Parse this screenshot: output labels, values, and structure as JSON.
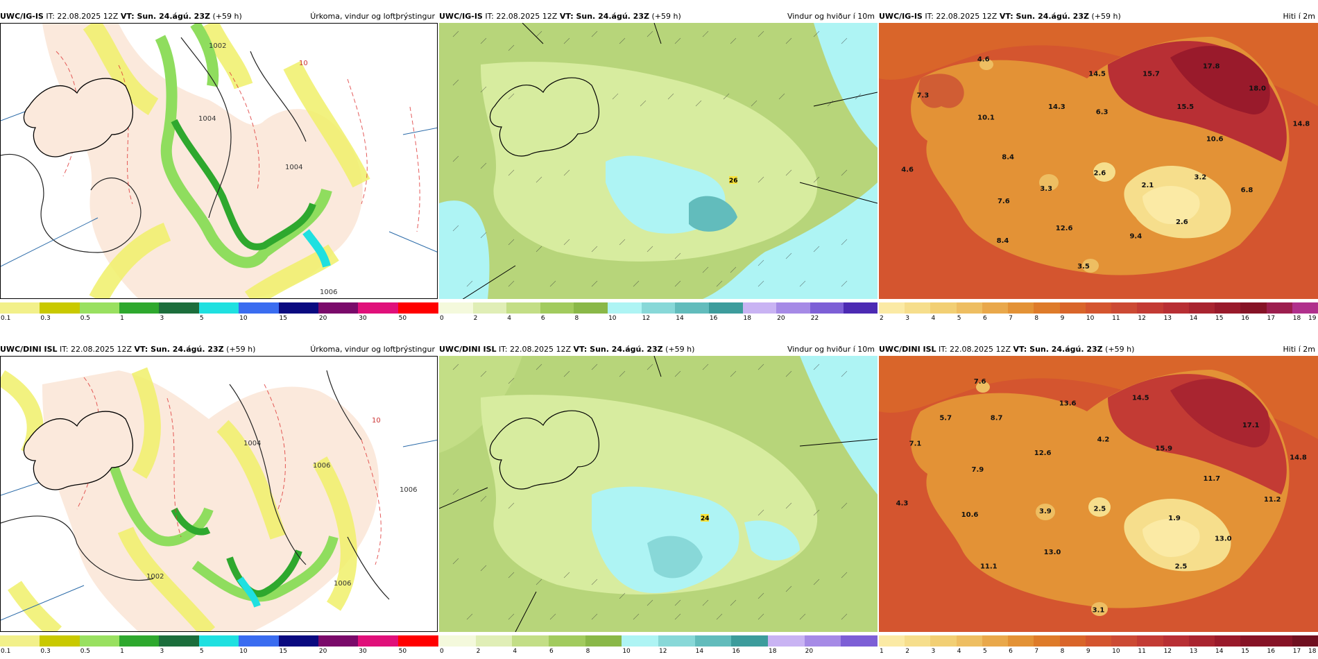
{
  "rows": [
    {
      "model": "UWC/IG-IS",
      "it_label": "IT: 22.08.2025 12Z",
      "vt_label": "VT: Sun. 24.ágú. 23Z",
      "lead": "(+59 h)",
      "panels": {
        "precip": {
          "title": "Úrkoma, vindur og loftþrýstingur",
          "isobars": [
            "1004",
            "1002",
            "1004",
            "1006",
            "10"
          ],
          "colorbar": {
            "colors": [
              "#f2f08a",
              "#c9c900",
              "#99e060",
              "#2ea82e",
              "#1c6e3c",
              "#1fe0e0",
              "#3a6cf0",
              "#0a0a80",
              "#7a0a6a",
              "#e0107a",
              "#ff0000"
            ],
            "ticks": [
              "0.1",
              "0.3",
              "0.5",
              "1",
              "3",
              "5",
              "10",
              "15",
              "20",
              "30",
              "50"
            ]
          }
        },
        "wind": {
          "title": "Vindur og hviður í 10m",
          "max_label": "26",
          "colorbar": {
            "colors": [
              "#f4f9dc",
              "#e0eeb6",
              "#c3de86",
              "#a2cb5e",
              "#8ab848",
              "#aef4f4",
              "#88d8d8",
              "#62bcbc",
              "#3d9c9c",
              "#c9b3f3",
              "#a68ae6",
              "#7d5fd6",
              "#4c2ab3"
            ],
            "ticks": [
              "0",
              "2",
              "4",
              "6",
              "8",
              "10",
              "12",
              "14",
              "16",
              "18",
              "20",
              "22"
            ]
          }
        },
        "temp": {
          "title": "Hiti í 2m",
          "labels": [
            {
              "v": "4.6",
              "u": 0.238,
              "w": 0.13
            },
            {
              "v": "7.3",
              "u": 0.1,
              "w": 0.26
            },
            {
              "v": "10.1",
              "u": 0.244,
              "w": 0.34
            },
            {
              "v": "14.5",
              "u": 0.497,
              "w": 0.182
            },
            {
              "v": "15.7",
              "u": 0.62,
              "w": 0.182
            },
            {
              "v": "17.8",
              "u": 0.757,
              "w": 0.155
            },
            {
              "v": "18.0",
              "u": 0.862,
              "w": 0.235
            },
            {
              "v": "14.3",
              "u": 0.405,
              "w": 0.302
            },
            {
              "v": "6.3",
              "u": 0.508,
              "w": 0.32
            },
            {
              "v": "15.5",
              "u": 0.698,
              "w": 0.302
            },
            {
              "v": "14.8",
              "u": 0.962,
              "w": 0.363
            },
            {
              "v": "10.6",
              "u": 0.765,
              "w": 0.418
            },
            {
              "v": "8.4",
              "u": 0.294,
              "w": 0.484
            },
            {
              "v": "4.6",
              "u": 0.065,
              "w": 0.529
            },
            {
              "v": "2.6",
              "u": 0.503,
              "w": 0.541
            },
            {
              "v": "2.1",
              "u": 0.612,
              "w": 0.585
            },
            {
              "v": "3.2",
              "u": 0.732,
              "w": 0.557
            },
            {
              "v": "3.3",
              "u": 0.381,
              "w": 0.598
            },
            {
              "v": "6.8",
              "u": 0.838,
              "w": 0.603
            },
            {
              "v": "7.6",
              "u": 0.284,
              "w": 0.643
            },
            {
              "v": "2.6",
              "u": 0.69,
              "w": 0.718
            },
            {
              "v": "12.6",
              "u": 0.422,
              "w": 0.741
            },
            {
              "v": "9.4",
              "u": 0.585,
              "w": 0.77
            },
            {
              "v": "8.4",
              "u": 0.282,
              "w": 0.786
            },
            {
              "v": "3.5",
              "u": 0.466,
              "w": 0.88
            }
          ],
          "colorbar": {
            "colors": [
              "#fbeaa5",
              "#f6de8c",
              "#f2cf74",
              "#eebe62",
              "#e9a84b",
              "#e39236",
              "#de7b2a",
              "#d9652a",
              "#d4552f",
              "#cc4a34",
              "#c33b34",
              "#b82f34",
              "#a92530",
              "#991a2b",
              "#861326",
              "#9c1e4e",
              "#b0308c"
            ],
            "ticks": [
              "2",
              "3",
              "4",
              "5",
              "6",
              "7",
              "8",
              "9",
              "10",
              "11",
              "12",
              "13",
              "14",
              "15",
              "16",
              "17",
              "18",
              "19"
            ]
          }
        }
      }
    },
    {
      "model": "UWC/DINI ISL",
      "it_label": "IT: 22.08.2025 12Z",
      "vt_label": "VT: Sun. 24.ágú. 23Z",
      "lead": "(+59 h)",
      "panels": {
        "precip": {
          "title": "Úrkoma, vindur og loftþrýstingur",
          "isobars": [
            "1004",
            "1006",
            "1002",
            "1006",
            "1006",
            "10"
          ],
          "colorbar": {
            "colors": [
              "#f2f08a",
              "#c9c900",
              "#99e060",
              "#2ea82e",
              "#1c6e3c",
              "#1fe0e0",
              "#3a6cf0",
              "#0a0a80",
              "#7a0a6a",
              "#e0107a",
              "#ff0000"
            ],
            "ticks": [
              "0.1",
              "0.3",
              "0.5",
              "1",
              "3",
              "5",
              "10",
              "15",
              "20",
              "30",
              "50"
            ]
          }
        },
        "wind": {
          "title": "Vindur og hviður í 10m",
          "max_label": "24",
          "colorbar": {
            "colors": [
              "#f4f9dc",
              "#e0eeb6",
              "#c3de86",
              "#a2cb5e",
              "#8ab848",
              "#aef4f4",
              "#88d8d8",
              "#62bcbc",
              "#3d9c9c",
              "#c9b3f3",
              "#a68ae6",
              "#7d5fd6"
            ],
            "ticks": [
              "0",
              "2",
              "4",
              "6",
              "8",
              "10",
              "12",
              "14",
              "16",
              "18",
              "20"
            ]
          }
        },
        "temp": {
          "title": "Hiti í 2m",
          "labels": [
            {
              "v": "7.6",
              "u": 0.23,
              "w": 0.09
            },
            {
              "v": "5.7",
              "u": 0.152,
              "w": 0.222
            },
            {
              "v": "8.7",
              "u": 0.268,
              "w": 0.222
            },
            {
              "v": "13.6",
              "u": 0.43,
              "w": 0.169
            },
            {
              "v": "14.5",
              "u": 0.596,
              "w": 0.15
            },
            {
              "v": "17.1",
              "u": 0.847,
              "w": 0.249
            },
            {
              "v": "7.1",
              "u": 0.083,
              "w": 0.315
            },
            {
              "v": "4.2",
              "u": 0.511,
              "w": 0.3
            },
            {
              "v": "12.6",
              "u": 0.373,
              "w": 0.349
            },
            {
              "v": "15.9",
              "u": 0.649,
              "w": 0.333
            },
            {
              "v": "14.8",
              "u": 0.955,
              "w": 0.366
            },
            {
              "v": "7.9",
              "u": 0.225,
              "w": 0.41
            },
            {
              "v": "11.7",
              "u": 0.758,
              "w": 0.442
            },
            {
              "v": "4.3",
              "u": 0.053,
              "w": 0.531
            },
            {
              "v": "11.2",
              "u": 0.896,
              "w": 0.517
            },
            {
              "v": "10.6",
              "u": 0.207,
              "w": 0.573
            },
            {
              "v": "3.9",
              "u": 0.379,
              "w": 0.56
            },
            {
              "v": "2.5",
              "u": 0.503,
              "w": 0.551
            },
            {
              "v": "1.9",
              "u": 0.673,
              "w": 0.585
            },
            {
              "v": "13.0",
              "u": 0.784,
              "w": 0.659
            },
            {
              "v": "13.0",
              "u": 0.395,
              "w": 0.709
            },
            {
              "v": "2.5",
              "u": 0.688,
              "w": 0.76
            },
            {
              "v": "11.1",
              "u": 0.25,
              "w": 0.76
            },
            {
              "v": "3.1",
              "u": 0.5,
              "w": 0.918
            }
          ],
          "colorbar": {
            "colors": [
              "#fbeaa5",
              "#f6de8c",
              "#f2cf74",
              "#eebe62",
              "#e9a84b",
              "#e39236",
              "#de7b2a",
              "#d9652a",
              "#d4552f",
              "#cc4a34",
              "#c33b34",
              "#b82f34",
              "#a92530",
              "#991a2b",
              "#861326",
              "#861326",
              "#701020"
            ],
            "ticks": [
              "1",
              "2",
              "3",
              "4",
              "5",
              "6",
              "7",
              "8",
              "9",
              "10",
              "11",
              "12",
              "13",
              "14",
              "15",
              "16",
              "17",
              "18"
            ]
          }
        }
      }
    }
  ]
}
